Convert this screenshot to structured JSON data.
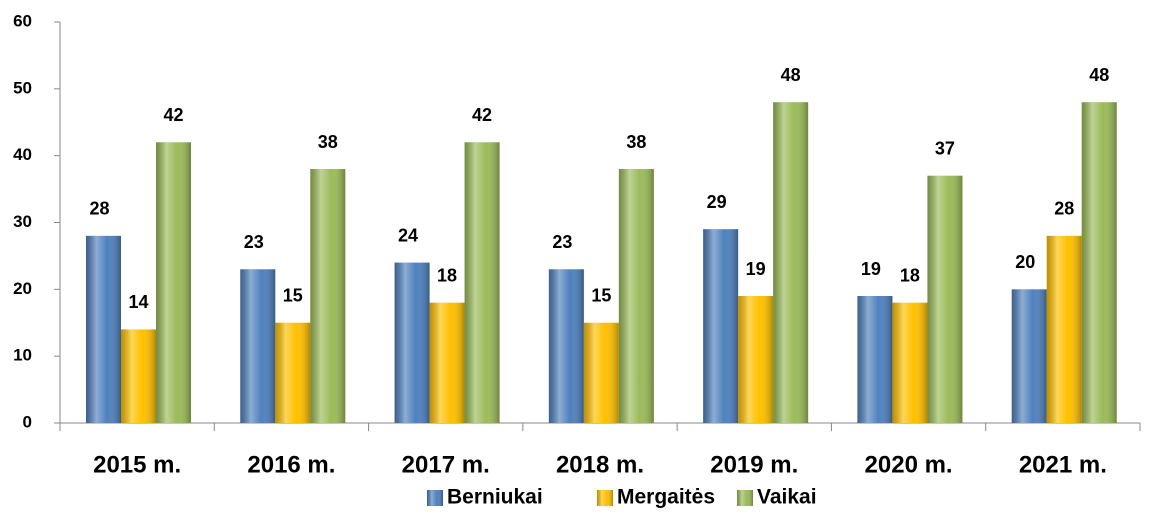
{
  "chart_data": {
    "type": "bar",
    "categories": [
      "2015 m.",
      "2016 m.",
      "2017 m.",
      "2018 m.",
      "2019 m.",
      "2020 m.",
      "2021 m."
    ],
    "series": [
      {
        "name": "Berniukai",
        "color": "#4f81bd",
        "values": [
          28,
          23,
          24,
          23,
          29,
          19,
          20
        ]
      },
      {
        "name": "Mergaitės",
        "color": "#ffc000",
        "values": [
          14,
          15,
          18,
          15,
          19,
          18,
          28
        ]
      },
      {
        "name": "Vaikai",
        "color": "#9bbb59",
        "values": [
          42,
          38,
          42,
          38,
          48,
          37,
          48
        ]
      }
    ],
    "ylim": [
      0,
      60
    ],
    "yticks": [
      0,
      10,
      20,
      30,
      40,
      50,
      60
    ],
    "legend": "bottom"
  }
}
